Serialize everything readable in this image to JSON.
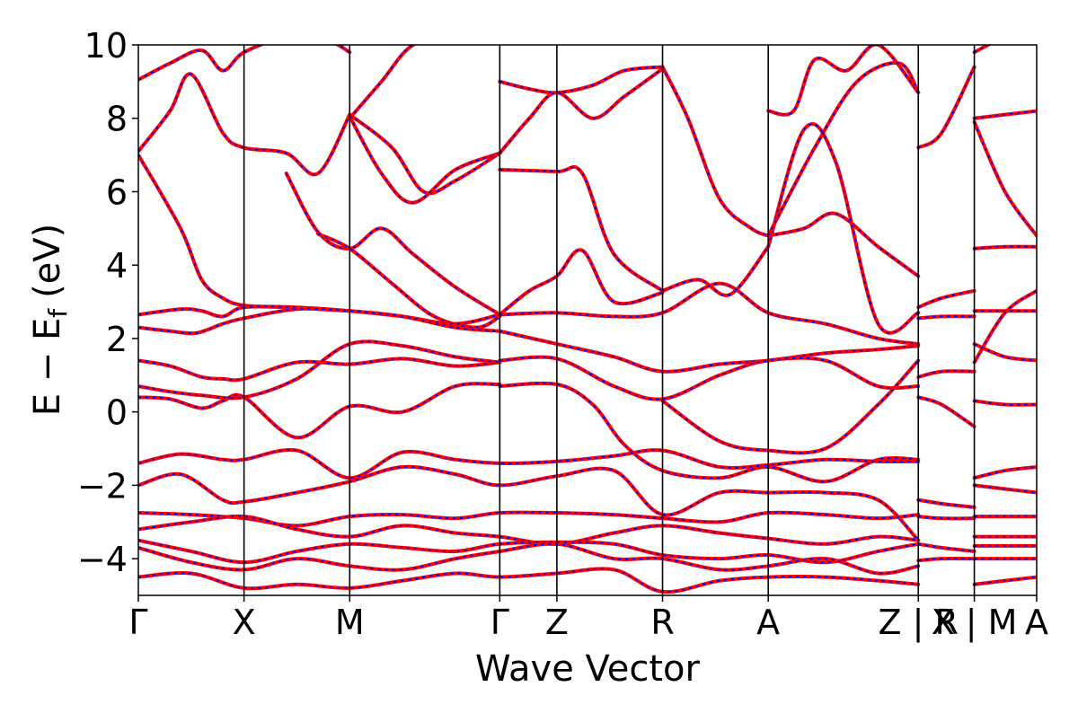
{
  "chart_data": {
    "type": "line",
    "title": "",
    "xlabel": "Wave Vector",
    "ylabel": "E − E",
    "ylabel_subscript": "f",
    "ylabel_unit": "(eV)",
    "ylim": [
      -5,
      10
    ],
    "yticks": [
      -4,
      -2,
      0,
      2,
      4,
      6,
      8,
      10
    ],
    "ytick_labels": [
      "−4",
      "−2",
      "0",
      "2",
      "4",
      "6",
      "8",
      "10"
    ],
    "xlim": [
      0,
      8.5
    ],
    "kpoints": [
      {
        "label": "Γ",
        "x": 0.0
      },
      {
        "label": "X",
        "x": 1.0
      },
      {
        "label": "M",
        "x": 2.0
      },
      {
        "label": "Γ",
        "x": 3.42
      },
      {
        "label": "Z",
        "x": 3.96
      },
      {
        "label": "R",
        "x": 4.96
      },
      {
        "label": "A",
        "x": 5.96
      },
      {
        "label": "Z | R",
        "x": 7.38
      },
      {
        "label": "X | M",
        "x": 7.91
      },
      {
        "label": "A",
        "x": 8.5
      }
    ],
    "grid": false,
    "colors": {
      "series_a": "#ff0000",
      "series_b": "#0000ff",
      "axes": "#000000"
    },
    "series": [
      {
        "style": "solid-red"
      },
      {
        "style": "dashed-blue"
      }
    ],
    "bands": [
      {
        "x": [
          0,
          0.3,
          0.6,
          0.8,
          1.0,
          1.4,
          1.8,
          2.0
        ],
        "y": [
          9.05,
          9.5,
          9.85,
          9.3,
          9.8,
          10.2,
          10.1,
          9.8
        ]
      },
      {
        "x": [
          0,
          0.3,
          0.5,
          0.8,
          1.0,
          1.4,
          1.7,
          2.0
        ],
        "y": [
          7.1,
          8.2,
          9.2,
          7.6,
          7.2,
          7.05,
          6.5,
          8.1
        ]
      },
      {
        "x": [
          0,
          0.4,
          0.6,
          0.8,
          1.0,
          1.4,
          1.7,
          2.0
        ],
        "y": [
          7.0,
          5.0,
          3.6,
          3.1,
          2.9,
          2.85,
          2.8,
          2.75
        ]
      },
      {
        "x": [
          2.0,
          2.4,
          2.7,
          3.0,
          3.42
        ],
        "y": [
          8.1,
          7.2,
          6.0,
          6.3,
          7.05
        ]
      },
      {
        "x": [
          2.0,
          2.3,
          2.6,
          3.0,
          3.42
        ],
        "y": [
          8.05,
          6.5,
          5.7,
          6.6,
          7.05
        ]
      },
      {
        "x": [
          2.0,
          2.3,
          2.6,
          3.0,
          3.42
        ],
        "y": [
          8.0,
          9.0,
          10.0,
          10.2,
          10.1
        ]
      },
      {
        "x": [
          1.4,
          1.7,
          2.0,
          2.3,
          2.6,
          3.0,
          3.42
        ],
        "y": [
          6.5,
          4.9,
          4.45,
          5.0,
          4.3,
          3.4,
          2.65
        ]
      },
      {
        "x": [
          1.7,
          2.0,
          2.4,
          2.8,
          3.2,
          3.42
        ],
        "y": [
          4.85,
          4.45,
          3.5,
          2.6,
          2.3,
          2.6
        ]
      },
      {
        "x": [
          3.42,
          3.7,
          3.96,
          4.3,
          4.6,
          4.96
        ],
        "y": [
          9.0,
          8.8,
          8.7,
          8.9,
          9.3,
          9.4
        ]
      },
      {
        "x": [
          3.42,
          3.7,
          3.96,
          4.3,
          4.6,
          4.96
        ],
        "y": [
          7.05,
          8.0,
          8.7,
          8.0,
          8.6,
          9.35
        ]
      },
      {
        "x": [
          3.42,
          3.96,
          4.2,
          4.5,
          4.96
        ],
        "y": [
          6.6,
          6.55,
          6.5,
          4.3,
          3.3
        ]
      },
      {
        "x": [
          3.42,
          3.7,
          3.96,
          4.2,
          4.5,
          4.96
        ],
        "y": [
          2.65,
          3.3,
          3.7,
          4.4,
          3.0,
          3.25
        ]
      },
      {
        "x": [
          4.96,
          5.2,
          5.5,
          5.8,
          5.96
        ],
        "y": [
          9.4,
          8.0,
          5.8,
          5.0,
          4.8
        ]
      },
      {
        "x": [
          4.96,
          5.3,
          5.6,
          5.96
        ],
        "y": [
          3.3,
          3.6,
          3.2,
          4.5
        ]
      },
      {
        "x": [
          5.96,
          6.2,
          6.4,
          6.7,
          7.0,
          7.38
        ],
        "y": [
          8.2,
          8.2,
          9.6,
          9.3,
          10.0,
          8.7
        ]
      },
      {
        "x": [
          5.96,
          6.3,
          6.6,
          7.0,
          7.38
        ],
        "y": [
          4.8,
          5.0,
          5.4,
          4.5,
          3.7
        ]
      },
      {
        "x": [
          5.96,
          6.3,
          6.6,
          7.0,
          7.38
        ],
        "y": [
          4.5,
          7.7,
          6.8,
          2.4,
          2.7
        ]
      },
      {
        "x": [
          5.96,
          6.4,
          6.8,
          7.2,
          7.38
        ],
        "y": [
          4.8,
          7.2,
          9.0,
          9.5,
          8.7
        ]
      },
      {
        "x": [
          0,
          0.4,
          0.6,
          0.8,
          1.0,
          1.5,
          2.0,
          2.5,
          3.0,
          3.42
        ],
        "y": [
          2.65,
          2.8,
          2.75,
          2.6,
          2.85,
          2.85,
          2.75,
          2.6,
          2.4,
          2.65
        ]
      },
      {
        "x": [
          0,
          0.3,
          0.55,
          0.8,
          1.0,
          1.5,
          2.0,
          2.5,
          3.0,
          3.42
        ],
        "y": [
          2.3,
          2.2,
          2.15,
          2.4,
          2.55,
          2.8,
          2.75,
          2.6,
          2.3,
          2.2
        ]
      },
      {
        "x": [
          0,
          0.3,
          0.6,
          0.8,
          1.0,
          1.5,
          2.0,
          2.5,
          3.0,
          3.42
        ],
        "y": [
          1.4,
          1.25,
          0.95,
          0.9,
          0.9,
          1.35,
          1.3,
          1.45,
          1.25,
          1.35
        ]
      },
      {
        "x": [
          0,
          0.3,
          0.6,
          1.0,
          1.5,
          2.0,
          2.5,
          3.0,
          3.42
        ],
        "y": [
          0.7,
          0.55,
          0.45,
          0.4,
          0.9,
          1.85,
          1.8,
          1.5,
          1.35
        ]
      },
      {
        "x": [
          0,
          0.3,
          0.6,
          0.8,
          1.0,
          1.5,
          2.0,
          2.5,
          3.0,
          3.42
        ],
        "y": [
          0.4,
          0.35,
          0.1,
          0.3,
          0.4,
          -0.7,
          0.15,
          0.0,
          0.7,
          0.75
        ]
      },
      {
        "x": [
          3.42,
          3.96,
          4.5,
          4.96,
          5.5,
          5.96,
          6.5,
          7.0,
          7.38
        ],
        "y": [
          2.65,
          2.7,
          2.6,
          2.7,
          3.5,
          2.7,
          2.4,
          2.0,
          1.85
        ]
      },
      {
        "x": [
          3.42,
          3.96,
          4.5,
          4.96,
          5.5,
          5.96,
          6.5,
          7.0,
          7.38
        ],
        "y": [
          2.2,
          1.85,
          1.5,
          1.1,
          1.3,
          1.4,
          1.6,
          1.7,
          1.8
        ]
      },
      {
        "x": [
          3.42,
          3.96,
          4.5,
          4.96,
          5.5,
          5.96,
          6.5,
          7.0,
          7.38
        ],
        "y": [
          1.4,
          1.45,
          0.7,
          0.35,
          1.0,
          1.4,
          1.4,
          0.7,
          0.7
        ]
      },
      {
        "x": [
          3.42,
          3.96,
          4.3,
          4.6,
          4.96,
          5.5,
          5.96,
          6.5,
          7.0,
          7.38
        ],
        "y": [
          0.7,
          0.75,
          0.2,
          -0.9,
          -1.6,
          -1.8,
          -1.5,
          -1.9,
          -1.3,
          -1.3
        ]
      },
      {
        "x": [
          4.96,
          5.5,
          5.96,
          6.5,
          7.0,
          7.38
        ],
        "y": [
          0.3,
          -0.8,
          -1.05,
          -1.0,
          0.2,
          1.4
        ]
      },
      {
        "x": [
          0,
          0.4,
          0.8,
          1.0,
          1.5,
          2.0,
          2.5,
          3.0,
          3.42,
          3.96,
          4.5,
          4.96,
          5.5,
          5.96,
          6.5,
          7.0,
          7.38
        ],
        "y": [
          -1.4,
          -1.15,
          -1.3,
          -1.3,
          -1.05,
          -1.8,
          -1.1,
          -1.3,
          -1.4,
          -1.35,
          -1.2,
          -1.05,
          -1.5,
          -1.45,
          -1.3,
          -1.35,
          -1.35
        ]
      },
      {
        "x": [
          0,
          0.4,
          0.8,
          1.0,
          1.5,
          2.0,
          2.5,
          3.0,
          3.42,
          3.96,
          4.5,
          4.96,
          5.5,
          5.96,
          6.5,
          7.0,
          7.38
        ],
        "y": [
          -2.0,
          -1.7,
          -2.4,
          -2.45,
          -2.2,
          -1.9,
          -1.5,
          -1.7,
          -2.0,
          -1.75,
          -1.6,
          -2.8,
          -2.2,
          -2.2,
          -2.2,
          -2.4,
          -3.5
        ]
      },
      {
        "x": [
          0,
          0.5,
          1.0,
          1.5,
          2.0,
          2.5,
          3.0,
          3.42,
          3.96,
          4.5,
          4.96,
          5.5,
          5.96,
          6.5,
          7.0,
          7.38
        ],
        "y": [
          -2.75,
          -2.8,
          -2.9,
          -3.1,
          -2.85,
          -2.8,
          -2.9,
          -2.75,
          -2.75,
          -2.8,
          -2.9,
          -3.0,
          -2.75,
          -2.8,
          -2.9,
          -2.8
        ]
      },
      {
        "x": [
          0,
          0.5,
          1.0,
          1.5,
          2.0,
          2.5,
          3.0,
          3.42,
          3.96,
          4.5,
          4.96,
          5.5,
          5.96,
          6.5,
          7.0,
          7.38
        ],
        "y": [
          -3.2,
          -3.0,
          -2.85,
          -3.2,
          -3.4,
          -3.1,
          -3.3,
          -3.4,
          -3.6,
          -3.3,
          -3.1,
          -3.3,
          -3.45,
          -3.6,
          -3.4,
          -3.5
        ]
      },
      {
        "x": [
          0,
          0.5,
          1.0,
          1.5,
          2.0,
          2.5,
          3.0,
          3.42,
          3.96,
          4.5,
          4.96,
          5.5,
          5.96,
          6.5,
          7.0,
          7.38
        ],
        "y": [
          -3.5,
          -3.8,
          -4.1,
          -3.8,
          -3.6,
          -3.7,
          -3.8,
          -3.6,
          -3.55,
          -3.6,
          -3.9,
          -4.0,
          -3.9,
          -4.1,
          -3.8,
          -3.6
        ]
      },
      {
        "x": [
          0,
          0.5,
          1.0,
          1.5,
          2.0,
          2.5,
          3.0,
          3.42,
          3.96,
          4.5,
          4.96,
          5.5,
          5.96,
          6.5,
          7.0,
          7.38
        ],
        "y": [
          -3.7,
          -4.1,
          -4.3,
          -4.0,
          -4.2,
          -4.3,
          -4.0,
          -3.8,
          -3.6,
          -4.0,
          -4.0,
          -4.3,
          -4.2,
          -4.0,
          -4.4,
          -4.2
        ]
      },
      {
        "x": [
          0,
          0.5,
          1.0,
          1.5,
          2.0,
          2.5,
          3.0,
          3.42,
          3.96,
          4.5,
          4.96,
          5.5,
          5.96,
          6.5,
          7.0,
          7.38
        ],
        "y": [
          -4.5,
          -4.4,
          -4.8,
          -4.7,
          -4.8,
          -4.6,
          -4.4,
          -4.5,
          -4.4,
          -4.3,
          -4.9,
          -4.6,
          -4.5,
          -4.5,
          -4.6,
          -4.7
        ]
      },
      {
        "x": [
          7.38,
          7.6,
          7.91
        ],
        "y": [
          7.2,
          7.6,
          9.4
        ]
      },
      {
        "x": [
          7.38,
          7.6,
          7.91
        ],
        "y": [
          2.85,
          3.1,
          3.3
        ]
      },
      {
        "x": [
          7.38,
          7.6,
          7.91
        ],
        "y": [
          2.55,
          2.6,
          2.6
        ]
      },
      {
        "x": [
          7.38,
          7.6,
          7.91
        ],
        "y": [
          0.95,
          1.1,
          1.1
        ]
      },
      {
        "x": [
          7.38,
          7.6,
          7.91
        ],
        "y": [
          0.4,
          0.2,
          -0.4
        ]
      },
      {
        "x": [
          7.38,
          7.6,
          7.91
        ],
        "y": [
          -2.4,
          -2.5,
          -2.6
        ]
      },
      {
        "x": [
          7.38,
          7.6,
          7.91
        ],
        "y": [
          -2.85,
          -2.9,
          -2.9
        ]
      },
      {
        "x": [
          7.38,
          7.6,
          7.91
        ],
        "y": [
          -3.6,
          -3.7,
          -3.8
        ]
      },
      {
        "x": [
          7.38,
          7.6,
          7.91
        ],
        "y": [
          -4.05,
          -4.0,
          -4.0
        ]
      },
      {
        "x": [
          7.91,
          8.2,
          8.5
        ],
        "y": [
          9.8,
          10.2,
          10.3
        ]
      },
      {
        "x": [
          7.91,
          8.2,
          8.5
        ],
        "y": [
          8.0,
          8.1,
          8.2
        ]
      },
      {
        "x": [
          7.91,
          8.2,
          8.5
        ],
        "y": [
          7.9,
          6.0,
          4.8
        ]
      },
      {
        "x": [
          7.91,
          8.2,
          8.5
        ],
        "y": [
          4.45,
          4.5,
          4.5
        ]
      },
      {
        "x": [
          7.91,
          8.2,
          8.5
        ],
        "y": [
          2.75,
          2.75,
          2.75
        ]
      },
      {
        "x": [
          7.91,
          8.2,
          8.5
        ],
        "y": [
          1.35,
          2.7,
          3.3
        ]
      },
      {
        "x": [
          7.91,
          8.2,
          8.5
        ],
        "y": [
          1.85,
          1.5,
          1.4
        ]
      },
      {
        "x": [
          7.91,
          8.2,
          8.5
        ],
        "y": [
          0.3,
          0.2,
          0.2
        ]
      },
      {
        "x": [
          7.91,
          8.2,
          8.5
        ],
        "y": [
          -1.8,
          -1.6,
          -1.5
        ]
      },
      {
        "x": [
          7.91,
          8.2,
          8.5
        ],
        "y": [
          -2.0,
          -2.1,
          -2.2
        ]
      },
      {
        "x": [
          7.91,
          8.2,
          8.5
        ],
        "y": [
          -2.85,
          -2.85,
          -2.85
        ]
      },
      {
        "x": [
          7.91,
          8.2,
          8.5
        ],
        "y": [
          -3.4,
          -3.4,
          -3.4
        ]
      },
      {
        "x": [
          7.91,
          8.2,
          8.5
        ],
        "y": [
          -3.65,
          -3.65,
          -3.65
        ]
      },
      {
        "x": [
          7.91,
          8.2,
          8.5
        ],
        "y": [
          -4.0,
          -4.0,
          -4.0
        ]
      },
      {
        "x": [
          7.91,
          8.2,
          8.5
        ],
        "y": [
          -4.7,
          -4.6,
          -4.5
        ]
      }
    ]
  }
}
